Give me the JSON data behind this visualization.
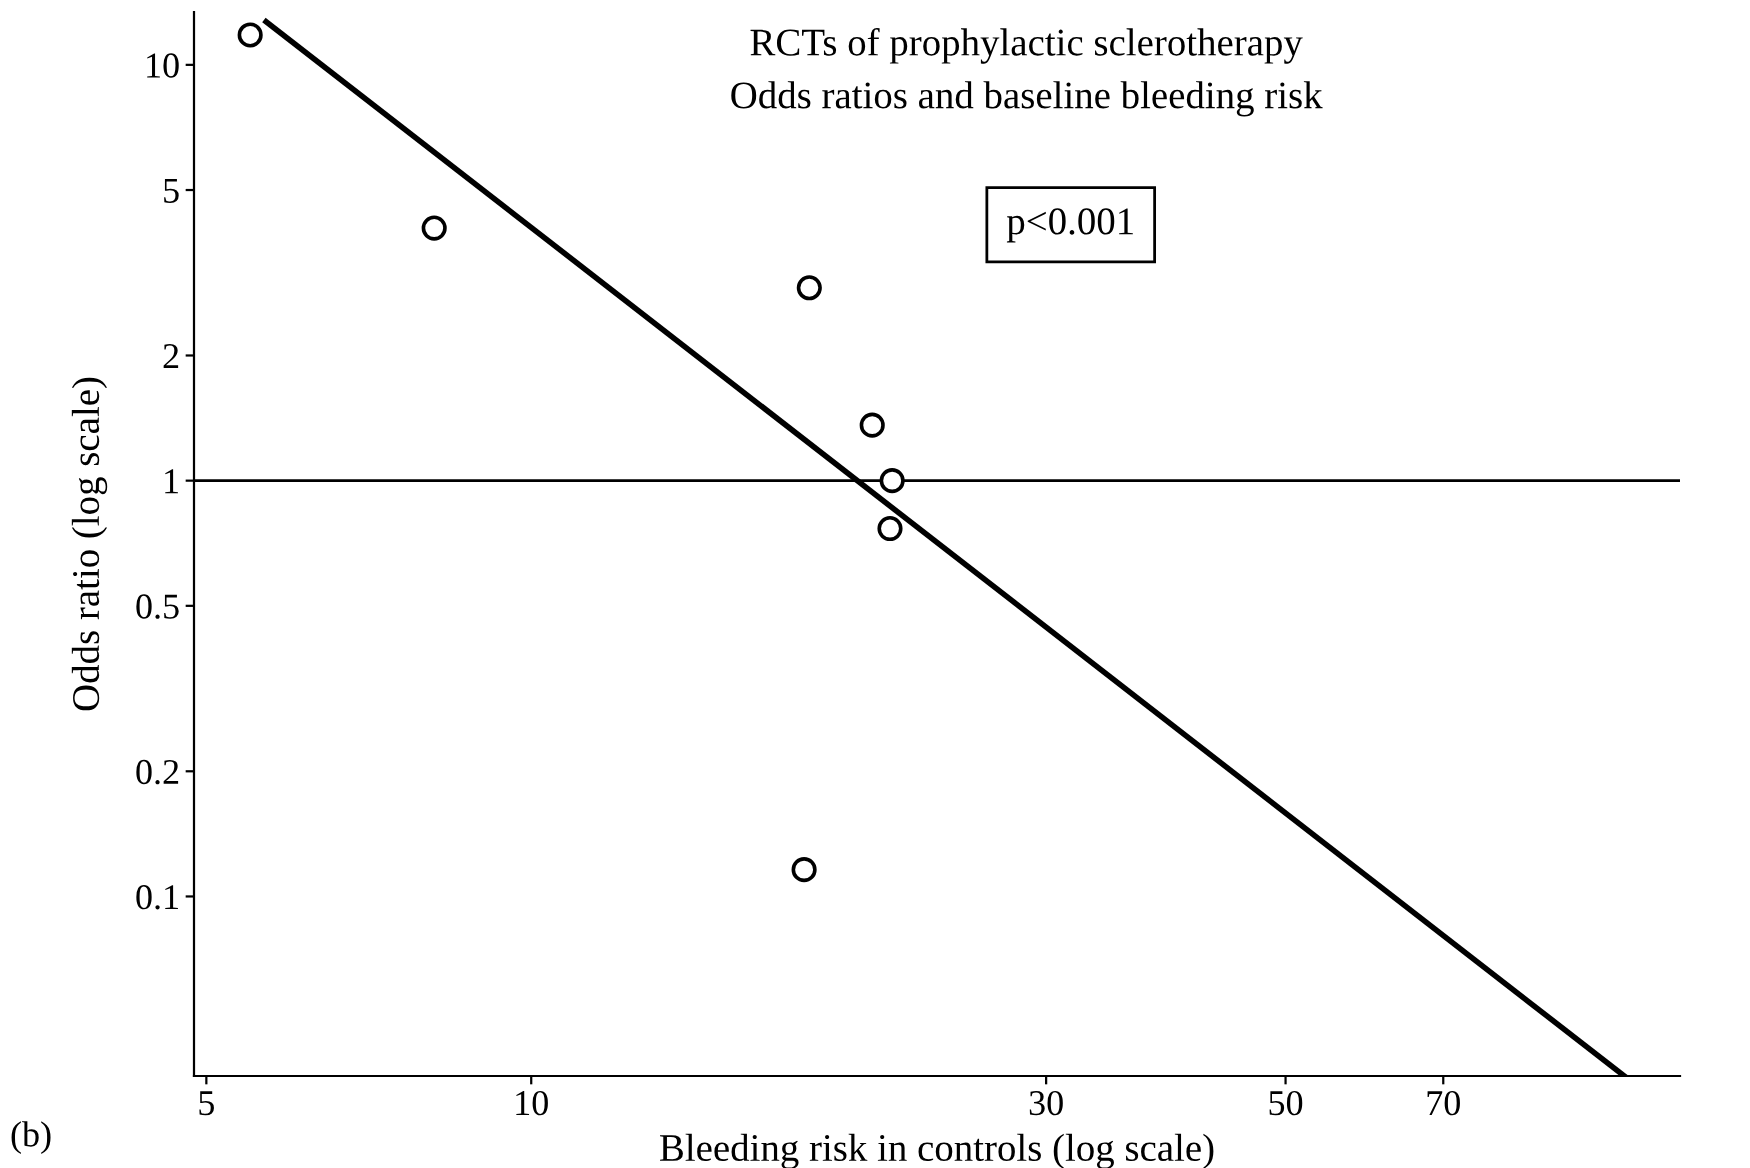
{
  "chart_data": {
    "type": "scatter",
    "title": "RCTs of prophylactic sclerotherapy",
    "subtitle": "Odds ratios and baseline bleeding risk",
    "xlabel": "Bleeding risk in controls (log scale)",
    "ylabel": "Odds ratio (log scale)",
    "log": "xy",
    "xlim": [
      4.87,
      116
    ],
    "ylim": [
      0.037,
      13.4
    ],
    "xticks": [
      5,
      10,
      30,
      50,
      70
    ],
    "yticks": [
      0.1,
      0.2,
      0.5,
      1,
      2,
      5,
      10
    ],
    "grid": false,
    "legend": false,
    "series": [
      {
        "marker": "circle",
        "color": "#000000",
        "x": [
          5.49,
          8.13,
          18.1,
          20.7,
          21.6,
          21.5,
          17.9
        ],
        "values": [
          11.8,
          4.05,
          2.91,
          1.36,
          1.0,
          0.767,
          0.116
        ]
      },
      {
        "type": "line",
        "marker": "none",
        "line_style": "solid",
        "color": "#000000",
        "x": [
          5.68,
          103
        ],
        "values": [
          12.7,
          0.037
        ]
      }
    ],
    "ref_lines": [
      {
        "axis": "y",
        "value": 1,
        "color": "#000000"
      }
    ],
    "annotations": [
      "p<0.001",
      "(b)"
    ]
  }
}
